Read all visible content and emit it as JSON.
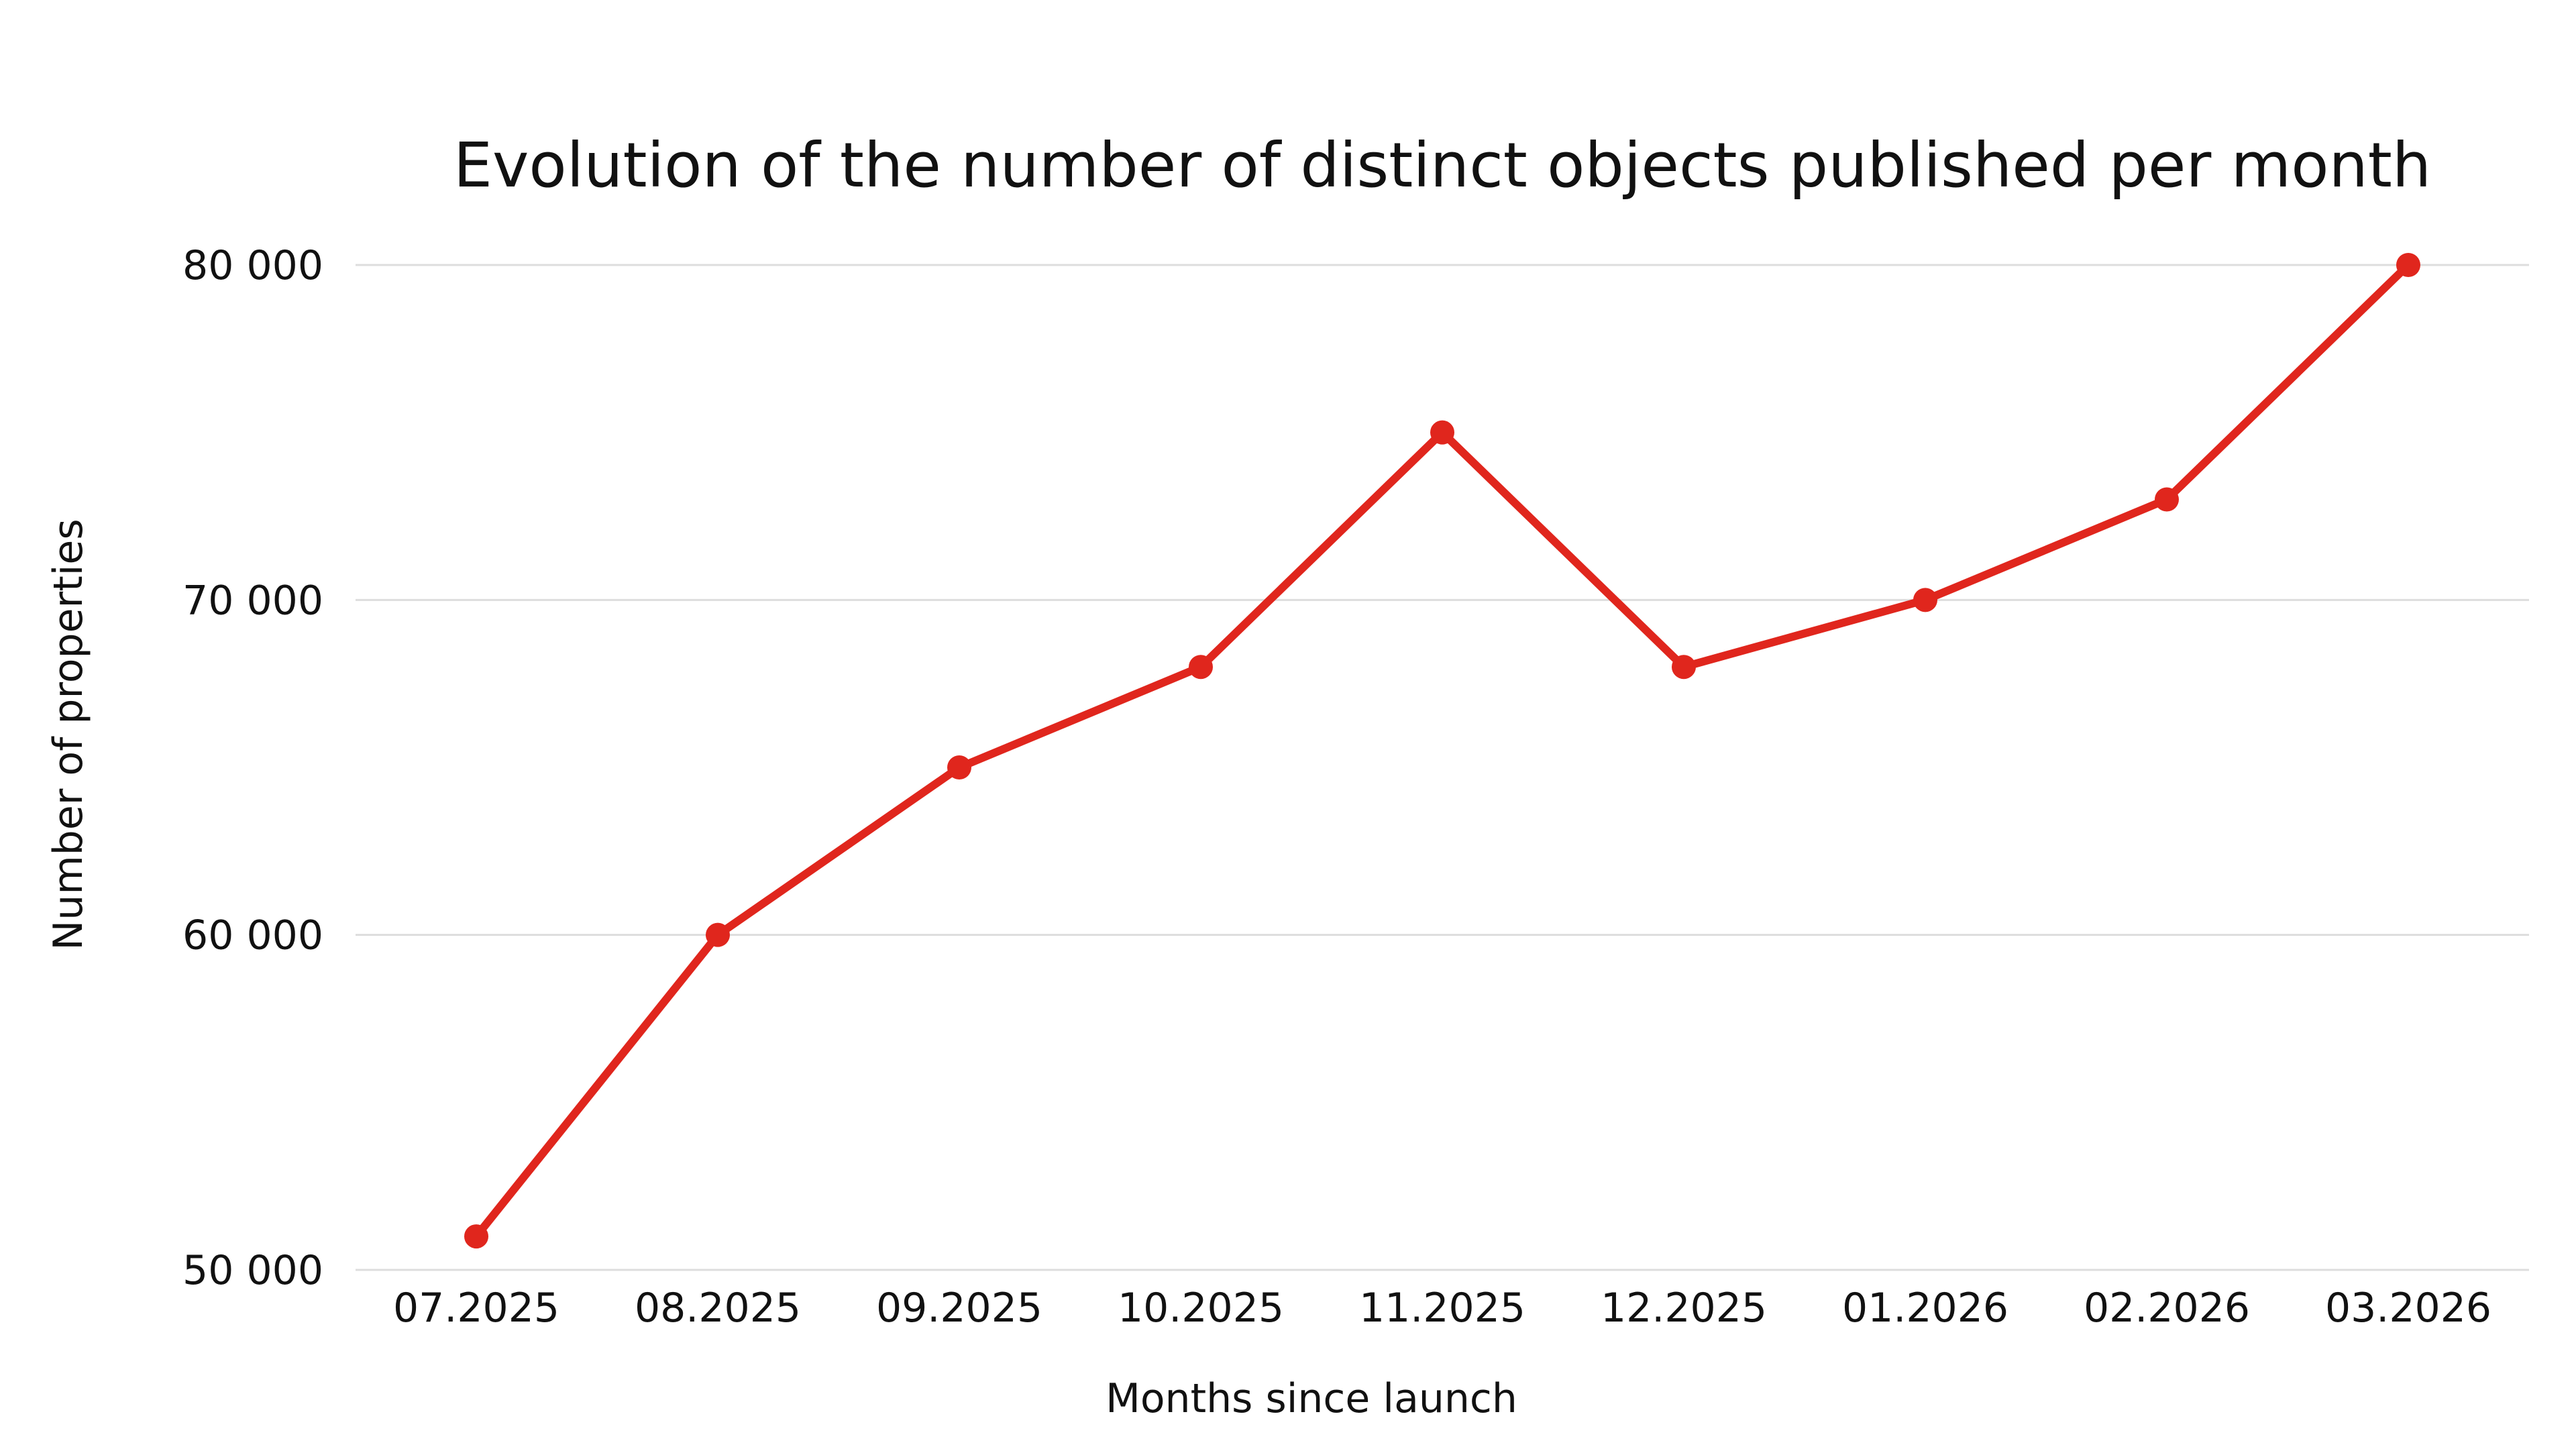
{
  "chart_data": {
    "type": "line",
    "title": "Evolution of the number of distinct objects published per month",
    "xlabel": "Months since launch",
    "ylabel": "Number of properties",
    "categories": [
      "07.2025",
      "08.2025",
      "09.2025",
      "10.2025",
      "11.2025",
      "12.2025",
      "01.2026",
      "02.2026",
      "03.2026"
    ],
    "series": [
      {
        "values": [
          51000,
          60000,
          65000,
          68000,
          75000,
          68000,
          70000,
          73000,
          80000
        ],
        "color": "#e0261d"
      }
    ],
    "ylim": [
      50000,
      80000
    ],
    "yticks": [
      50000,
      60000,
      70000,
      80000
    ],
    "ytick_labels": [
      "50 000",
      "60 000",
      "70 000",
      "80 000"
    ],
    "grid": true,
    "legend": "none"
  }
}
